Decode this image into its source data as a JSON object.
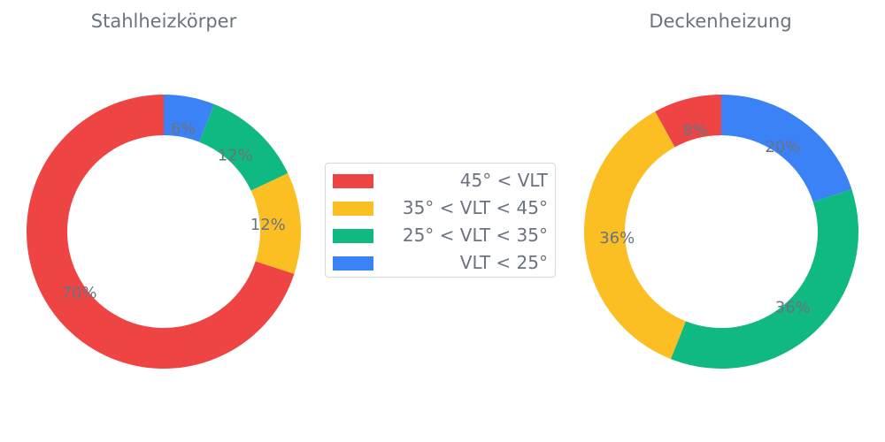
{
  "legend": {
    "items": [
      {
        "label": "45° < VLT",
        "color": "#ef4444"
      },
      {
        "label": "35° < VLT < 45°",
        "color": "#fbbf24"
      },
      {
        "label": "25° < VLT < 35°",
        "color": "#10b981"
      },
      {
        "label": "VLT < 25°",
        "color": "#3b82f6"
      }
    ]
  },
  "chart_data": [
    {
      "type": "pie",
      "title": "Stahlheizkörper",
      "categories": [
        "VLT < 25°",
        "25° < VLT < 35°",
        "35° < VLT < 45°",
        "45° < VLT"
      ],
      "values": [
        6,
        12,
        12,
        70
      ],
      "labels": [
        "6%",
        "12%",
        "12%",
        "70%"
      ],
      "colors": [
        "#3b82f6",
        "#10b981",
        "#fbbf24",
        "#ef4444"
      ],
      "donut": true,
      "start": "top",
      "direction": "clockwise"
    },
    {
      "type": "pie",
      "title": "Deckenheizung",
      "categories": [
        "VLT < 25°",
        "25° < VLT < 35°",
        "35° < VLT < 45°",
        "45° < VLT"
      ],
      "values": [
        20,
        36,
        36,
        8
      ],
      "labels": [
        "20%",
        "36%",
        "36%",
        "8%"
      ],
      "colors": [
        "#3b82f6",
        "#10b981",
        "#fbbf24",
        "#ef4444"
      ],
      "donut": true,
      "start": "top",
      "direction": "clockwise"
    }
  ]
}
